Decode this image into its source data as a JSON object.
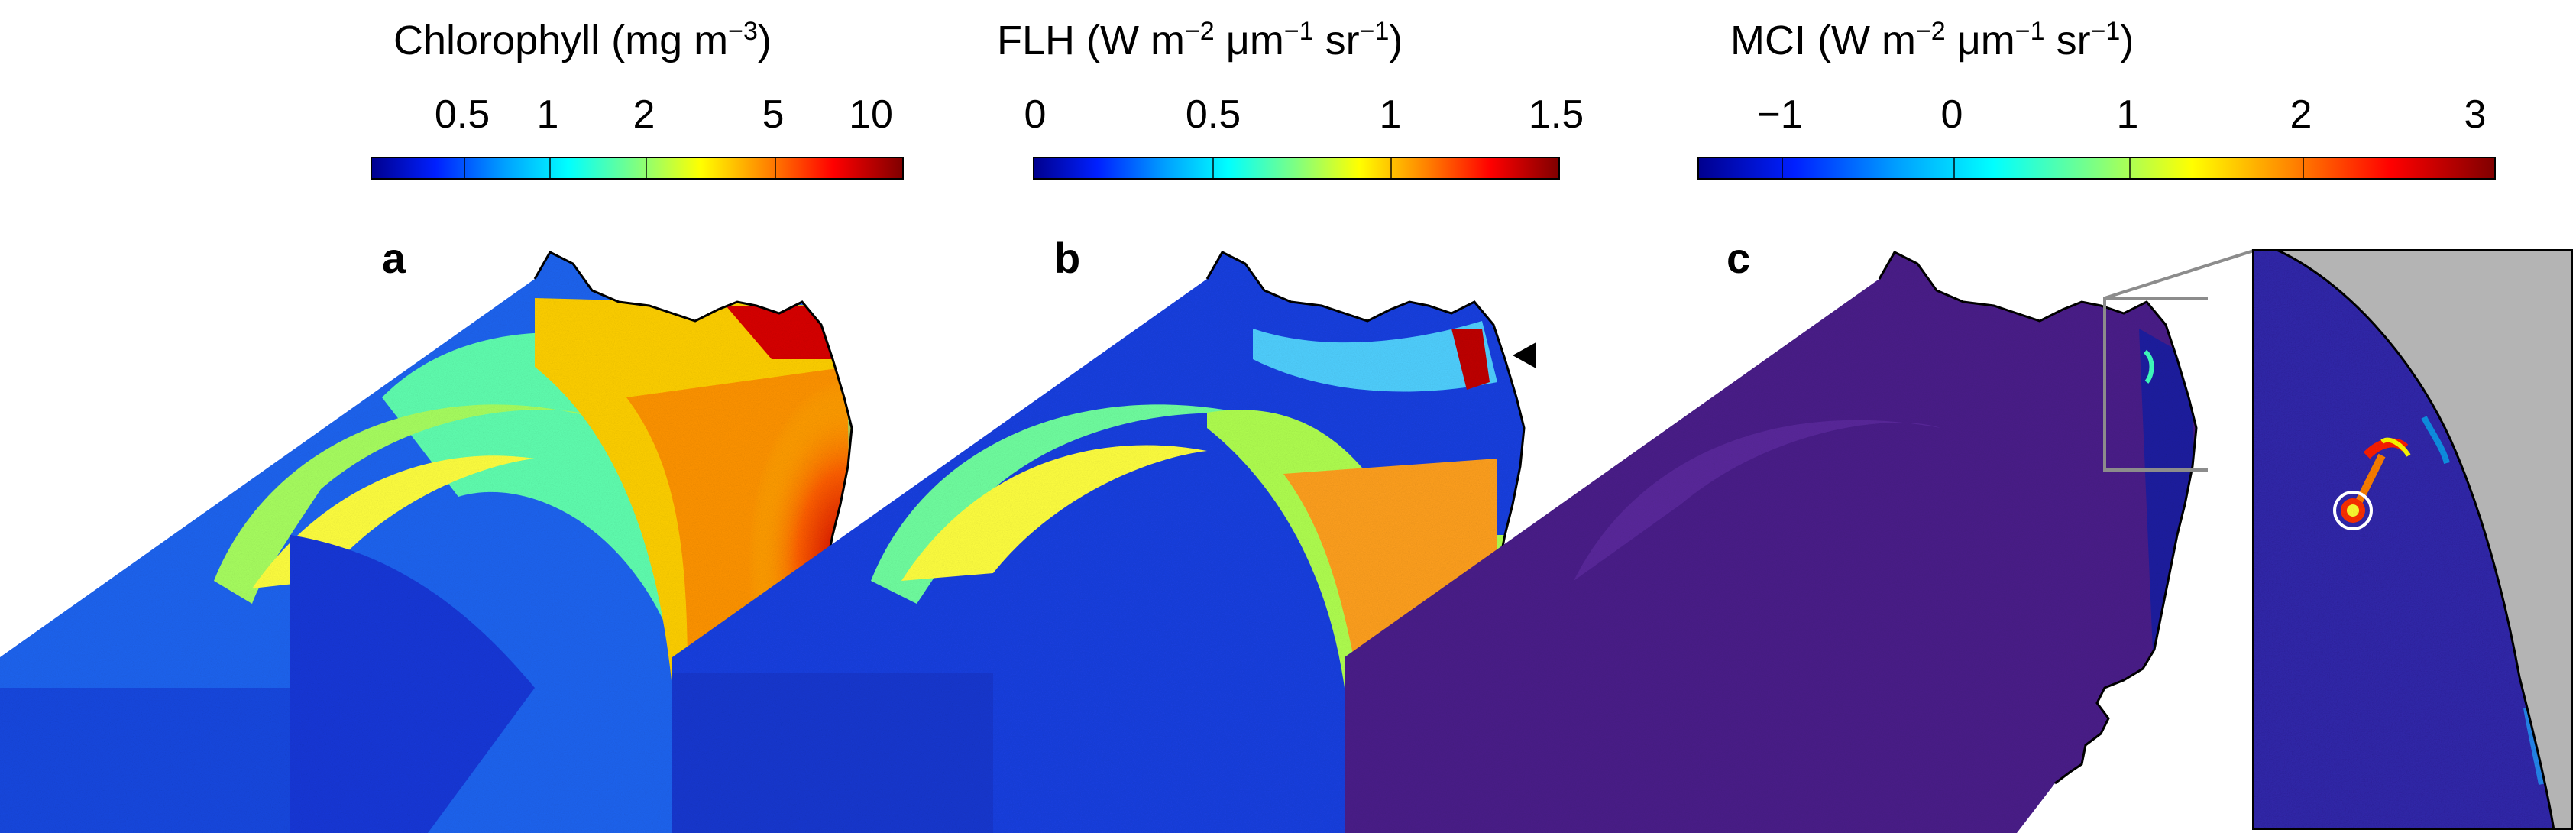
{
  "colorbars": [
    {
      "title": "Chlorophyll (mg m",
      "title_exp": "−3",
      "title_end": ")",
      "ticks": [
        "0.5",
        "1",
        "2",
        "5",
        "10"
      ],
      "scale": "log"
    },
    {
      "title": "FLH (W m",
      "title_exp": "−2",
      "title_mid": " μm",
      "title_exp2": "−1",
      "title_mid2": " sr",
      "title_exp3": "−1",
      "title_end": ")",
      "ticks": [
        "0",
        "0.5",
        "1",
        "1.5"
      ],
      "scale": "linear"
    },
    {
      "title": "MCI (W m",
      "title_exp": "−2",
      "title_mid": " μm",
      "title_exp2": "−1",
      "title_mid2": " sr",
      "title_exp3": "−1",
      "title_end": ")",
      "ticks": [
        "−1",
        "0",
        "1",
        "2",
        "3"
      ],
      "scale": "linear"
    }
  ],
  "panels": [
    "a",
    "b",
    "c"
  ],
  "colors": {
    "jet_dark_blue": "#00008f",
    "jet_blue": "#0020ff",
    "jet_cyan": "#00ffff",
    "jet_yellow": "#ffff00",
    "jet_red": "#ff0000",
    "jet_dark_red": "#800000",
    "mci_background": "#4a1f8a",
    "land_inset": "#b4b4b4",
    "inset_frame": "#8c8c8c"
  }
}
